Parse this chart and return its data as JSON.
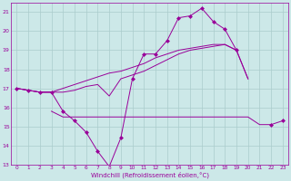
{
  "xlabel": "Windchill (Refroidissement éolien,°C)",
  "xlim": [
    -0.5,
    23.5
  ],
  "ylim": [
    13,
    21.5
  ],
  "yticks": [
    13,
    14,
    15,
    16,
    17,
    18,
    19,
    20,
    21
  ],
  "xticks": [
    0,
    1,
    2,
    3,
    4,
    5,
    6,
    7,
    8,
    9,
    10,
    11,
    12,
    13,
    14,
    15,
    16,
    17,
    18,
    19,
    20,
    21,
    22,
    23
  ],
  "background_color": "#cce8e8",
  "grid_color": "#aacccc",
  "line_color": "#990099",
  "series": {
    "temp": [
      17.0,
      16.9,
      16.8,
      16.8,
      15.8,
      15.3,
      14.7,
      13.7,
      12.9,
      14.4,
      17.5,
      18.8,
      18.8,
      19.5,
      20.7,
      20.8,
      21.2,
      20.5,
      20.1,
      19.0,
      null,
      null,
      15.1,
      15.3
    ],
    "min": [
      null,
      null,
      null,
      15.8,
      15.5,
      15.5,
      15.5,
      15.5,
      15.5,
      15.5,
      15.5,
      15.5,
      15.5,
      15.5,
      15.5,
      15.5,
      15.5,
      15.5,
      15.5,
      15.5,
      15.5,
      15.1,
      15.1,
      null
    ],
    "mean": [
      17.0,
      16.9,
      16.8,
      16.8,
      16.8,
      16.9,
      17.1,
      17.2,
      16.6,
      17.5,
      17.7,
      17.9,
      18.2,
      18.5,
      18.8,
      19.0,
      19.1,
      19.2,
      19.3,
      19.0,
      17.5,
      null,
      null,
      null
    ],
    "max": [
      17.0,
      16.9,
      16.8,
      16.8,
      17.0,
      17.2,
      17.4,
      17.6,
      17.8,
      17.9,
      18.1,
      18.3,
      18.6,
      18.8,
      19.0,
      19.1,
      19.2,
      19.3,
      19.3,
      19.0,
      17.5,
      null,
      null,
      null
    ]
  },
  "markersize": 2.5
}
